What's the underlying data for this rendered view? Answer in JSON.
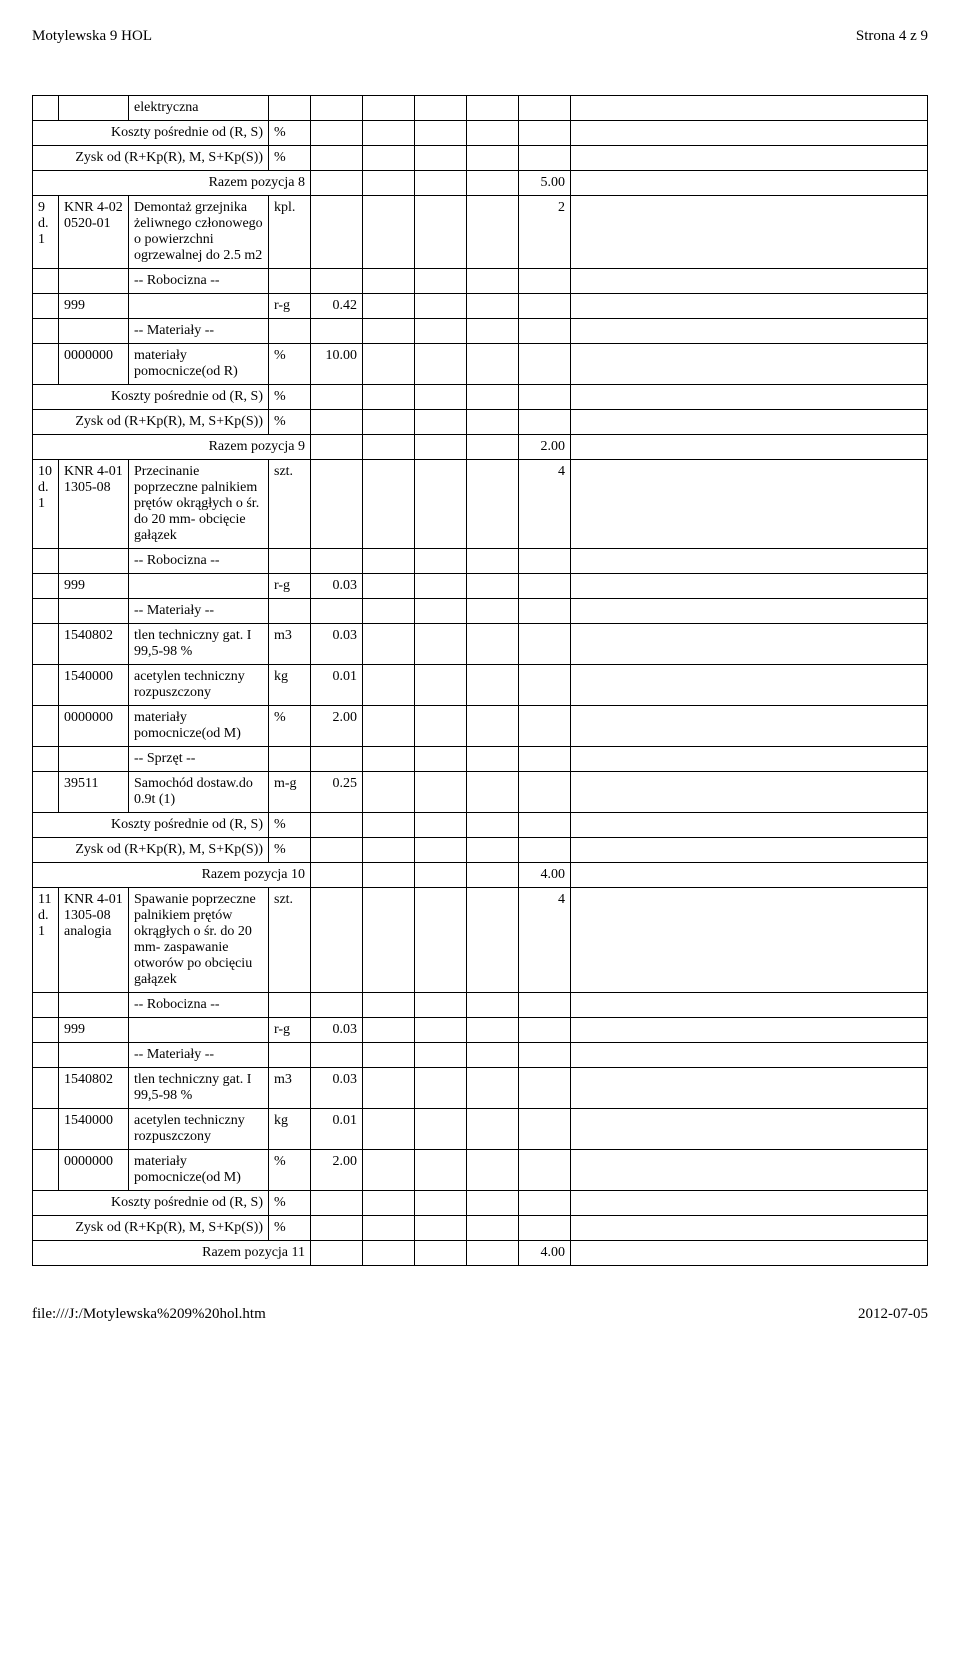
{
  "header": {
    "left": "Motylewska 9 HOL",
    "right": "Strona 4 z 9"
  },
  "footer": {
    "left": "file:///J:/Motylewska%209%20hol.htm",
    "right": "2012-07-05"
  },
  "blocks": [
    {
      "type": "desc-only",
      "desc": "elektryczna"
    },
    {
      "type": "kp",
      "label": "Koszty pośrednie od (R, S)",
      "unit": "%"
    },
    {
      "type": "zysk",
      "label": "Zysk od (R+Kp(R), M, S+Kp(S))",
      "unit": "%"
    },
    {
      "type": "razem",
      "label": "Razem pozycja 8",
      "value": "5.00"
    },
    {
      "type": "item",
      "no": "9 d.1",
      "code": "KNR 4-02 0520-01",
      "desc": "Demontaż grzejnika żeliwnego członowego o powierzchni ogrzewalnej do 2.5 m2",
      "unit": "kpl.",
      "qty": "2"
    },
    {
      "type": "section",
      "label": "-- Robocizna --"
    },
    {
      "type": "line",
      "code": "999",
      "desc": "",
      "unit": "r-g",
      "value": "0.42"
    },
    {
      "type": "section",
      "label": "-- Materiały --"
    },
    {
      "type": "line",
      "code": "0000000",
      "desc": "materiały pomocnicze(od R)",
      "unit": "%",
      "value": "10.00"
    },
    {
      "type": "kp",
      "label": "Koszty pośrednie od (R, S)",
      "unit": "%"
    },
    {
      "type": "zysk",
      "label": "Zysk od (R+Kp(R), M, S+Kp(S))",
      "unit": "%"
    },
    {
      "type": "razem",
      "label": "Razem pozycja 9",
      "value": "2.00"
    },
    {
      "type": "item",
      "no": "10 d.1",
      "code": "KNR 4-01 1305-08",
      "desc": "Przecinanie poprzeczne palnikiem prętów okrągłych o śr. do 20 mm- obcięcie gałązek",
      "unit": "szt.",
      "qty": "4"
    },
    {
      "type": "section",
      "label": "-- Robocizna --"
    },
    {
      "type": "line",
      "code": "999",
      "desc": "",
      "unit": "r-g",
      "value": "0.03"
    },
    {
      "type": "section",
      "label": "-- Materiały --"
    },
    {
      "type": "line",
      "code": "1540802",
      "desc": "tlen techniczny gat. I 99,5-98 %",
      "unit": "m3",
      "value": "0.03"
    },
    {
      "type": "line",
      "code": "1540000",
      "desc": "acetylen techniczny rozpuszczony",
      "unit": "kg",
      "value": "0.01"
    },
    {
      "type": "line",
      "code": "0000000",
      "desc": "materiały pomocnicze(od M)",
      "unit": "%",
      "value": "2.00"
    },
    {
      "type": "section",
      "label": "-- Sprzęt --"
    },
    {
      "type": "line",
      "code": "39511",
      "desc": "Samochód dostaw.do 0.9t (1)",
      "unit": "m-g",
      "value": "0.25"
    },
    {
      "type": "kp",
      "label": "Koszty pośrednie od (R, S)",
      "unit": "%"
    },
    {
      "type": "zysk",
      "label": "Zysk od (R+Kp(R), M, S+Kp(S))",
      "unit": "%"
    },
    {
      "type": "razem",
      "label": "Razem pozycja 10",
      "value": "4.00"
    },
    {
      "type": "item",
      "no": "11 d.1",
      "code": "KNR 4-01 1305-08 analogia",
      "desc": "Spawanie poprzeczne palnikiem prętów okrągłych o śr. do 20 mm- zaspawanie otworów po obcięciu gałązek",
      "unit": "szt.",
      "qty": "4"
    },
    {
      "type": "section",
      "label": "-- Robocizna --"
    },
    {
      "type": "line",
      "code": "999",
      "desc": "",
      "unit": "r-g",
      "value": "0.03"
    },
    {
      "type": "section",
      "label": "-- Materiały --"
    },
    {
      "type": "line",
      "code": "1540802",
      "desc": "tlen techniczny gat. I 99,5-98 %",
      "unit": "m3",
      "value": "0.03"
    },
    {
      "type": "line",
      "code": "1540000",
      "desc": "acetylen techniczny rozpuszczony",
      "unit": "kg",
      "value": "0.01"
    },
    {
      "type": "line",
      "code": "0000000",
      "desc": "materiały pomocnicze(od M)",
      "unit": "%",
      "value": "2.00"
    },
    {
      "type": "kp",
      "label": "Koszty pośrednie od (R, S)",
      "unit": "%"
    },
    {
      "type": "zysk",
      "label": "Zysk od (R+Kp(R), M, S+Kp(S))",
      "unit": "%"
    },
    {
      "type": "razem",
      "label": "Razem pozycja 11",
      "value": "4.00"
    }
  ]
}
